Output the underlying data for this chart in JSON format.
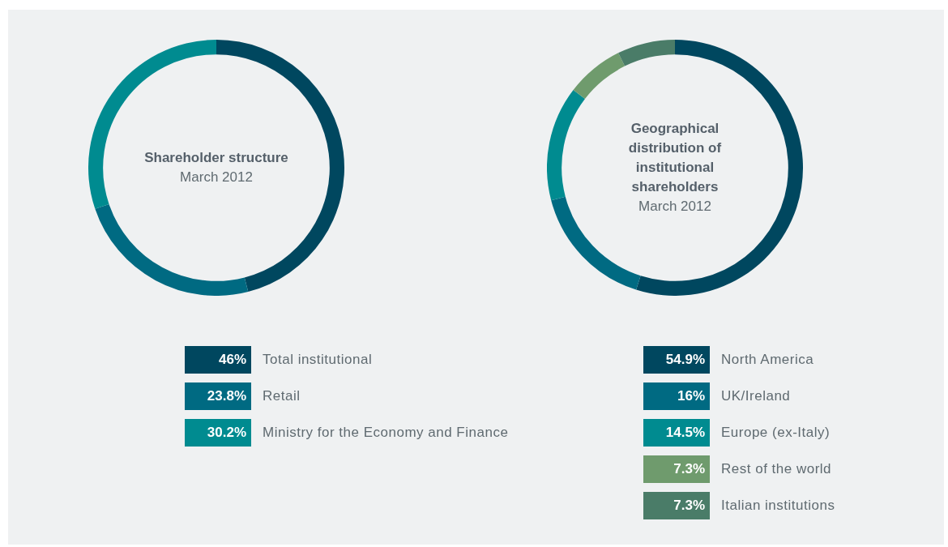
{
  "chart_data": [
    {
      "type": "donut",
      "title": "Shareholder structure",
      "subtitle": "March 2012",
      "categories": [
        "Total institutional",
        "Retail",
        "Ministry for the Economy and Finance"
      ],
      "values": [
        46,
        23.8,
        30.2
      ],
      "value_labels": [
        "46%",
        "23.8%",
        "30.2%"
      ],
      "colors": [
        "#00475f",
        "#006a82",
        "#008b90"
      ],
      "legend": "bottom"
    },
    {
      "type": "donut",
      "title": "Geographical distribution of institutional shareholders",
      "subtitle": "March 2012",
      "categories": [
        "North America",
        "UK/Ireland",
        "Europe (ex-Italy)",
        "Rest of the world",
        "Italian institutions"
      ],
      "values": [
        54.9,
        16,
        14.5,
        7.3,
        7.3
      ],
      "value_labels": [
        "54.9%",
        "16%",
        "14.5%",
        "7.3%",
        "7.3%"
      ],
      "colors": [
        "#00475f",
        "#006a82",
        "#008b90",
        "#6f9b6d",
        "#4a7c68"
      ],
      "legend": "bottom"
    }
  ]
}
